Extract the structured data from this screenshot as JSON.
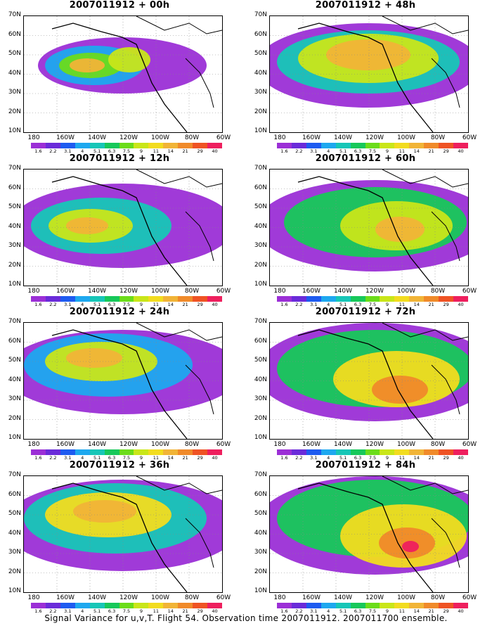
{
  "panels": [
    {
      "title": "2007011912 + 00h"
    },
    {
      "title": "2007011912 + 48h"
    },
    {
      "title": "2007011912 + 12h"
    },
    {
      "title": "2007011912 + 60h"
    },
    {
      "title": "2007011912 + 24h"
    },
    {
      "title": "2007011912 + 72h"
    },
    {
      "title": "2007011912 + 36h"
    },
    {
      "title": "2007011912 + 84h"
    }
  ],
  "lat_labels": [
    "70N",
    "60N",
    "50N",
    "40N",
    "30N",
    "20N",
    "10N"
  ],
  "lon_labels": [
    "180",
    "160W",
    "140W",
    "120W",
    "100W",
    "80W",
    "60W"
  ],
  "colorbar": {
    "colors": [
      "#9b2fd6",
      "#6a2bd9",
      "#1e5bf0",
      "#1ea8ef",
      "#17c6b7",
      "#17c85a",
      "#6bdc1a",
      "#c9e619",
      "#f2dc1f",
      "#f1b437",
      "#f08a2a",
      "#ef5324",
      "#ee1f5e"
    ],
    "labels": [
      "1.6",
      "2.2",
      "3.1",
      "4",
      "5.1",
      "6.3",
      "7.5",
      "9",
      "11",
      "14",
      "21",
      "29",
      "40"
    ]
  },
  "footer": "Signal Variance for u,v,T. Flight 54. Observation time 2007011912. 2007011700 ensemble."
}
